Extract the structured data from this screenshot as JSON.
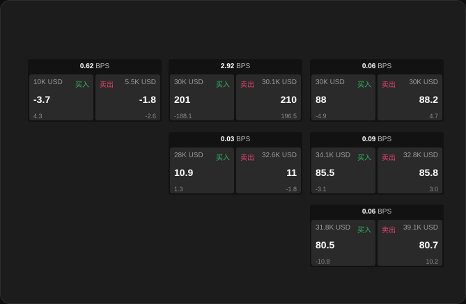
{
  "colors": {
    "buy": "#2fb35f",
    "sell": "#e0436b"
  },
  "labels": {
    "buy": "买入",
    "sell": "卖出",
    "unit": "BPS"
  },
  "cards": [
    {
      "spread": "0.62",
      "bid": {
        "size": "10K USD",
        "price": "-3.7",
        "change": "4.3"
      },
      "ask": {
        "size": "5.5K USD",
        "price": "-1.8",
        "change": "-2.6"
      }
    },
    {
      "spread": "2.92",
      "bid": {
        "size": "30K USD",
        "price": "201",
        "change": "-188.1"
      },
      "ask": {
        "size": "30.1K USD",
        "price": "210",
        "change": "196.5"
      }
    },
    {
      "spread": "0.06",
      "bid": {
        "size": "30K USD",
        "price": "88",
        "change": "-4.9"
      },
      "ask": {
        "size": "30K USD",
        "price": "88.2",
        "change": "4.7"
      }
    },
    {
      "spread": "0.03",
      "bid": {
        "size": "28K USD",
        "price": "10.9",
        "change": "1.3"
      },
      "ask": {
        "size": "32.6K USD",
        "price": "11",
        "change": "-1.8"
      }
    },
    {
      "spread": "0.09",
      "bid": {
        "size": "34.1K USD",
        "price": "85.5",
        "change": "-3.1"
      },
      "ask": {
        "size": "32.8K USD",
        "price": "85.8",
        "change": "3.0"
      }
    },
    {
      "spread": "0.06",
      "bid": {
        "size": "31.8K USD",
        "price": "80.5",
        "change": "-10.8"
      },
      "ask": {
        "size": "39.1K USD",
        "price": "80.7",
        "change": "10.2"
      }
    }
  ]
}
